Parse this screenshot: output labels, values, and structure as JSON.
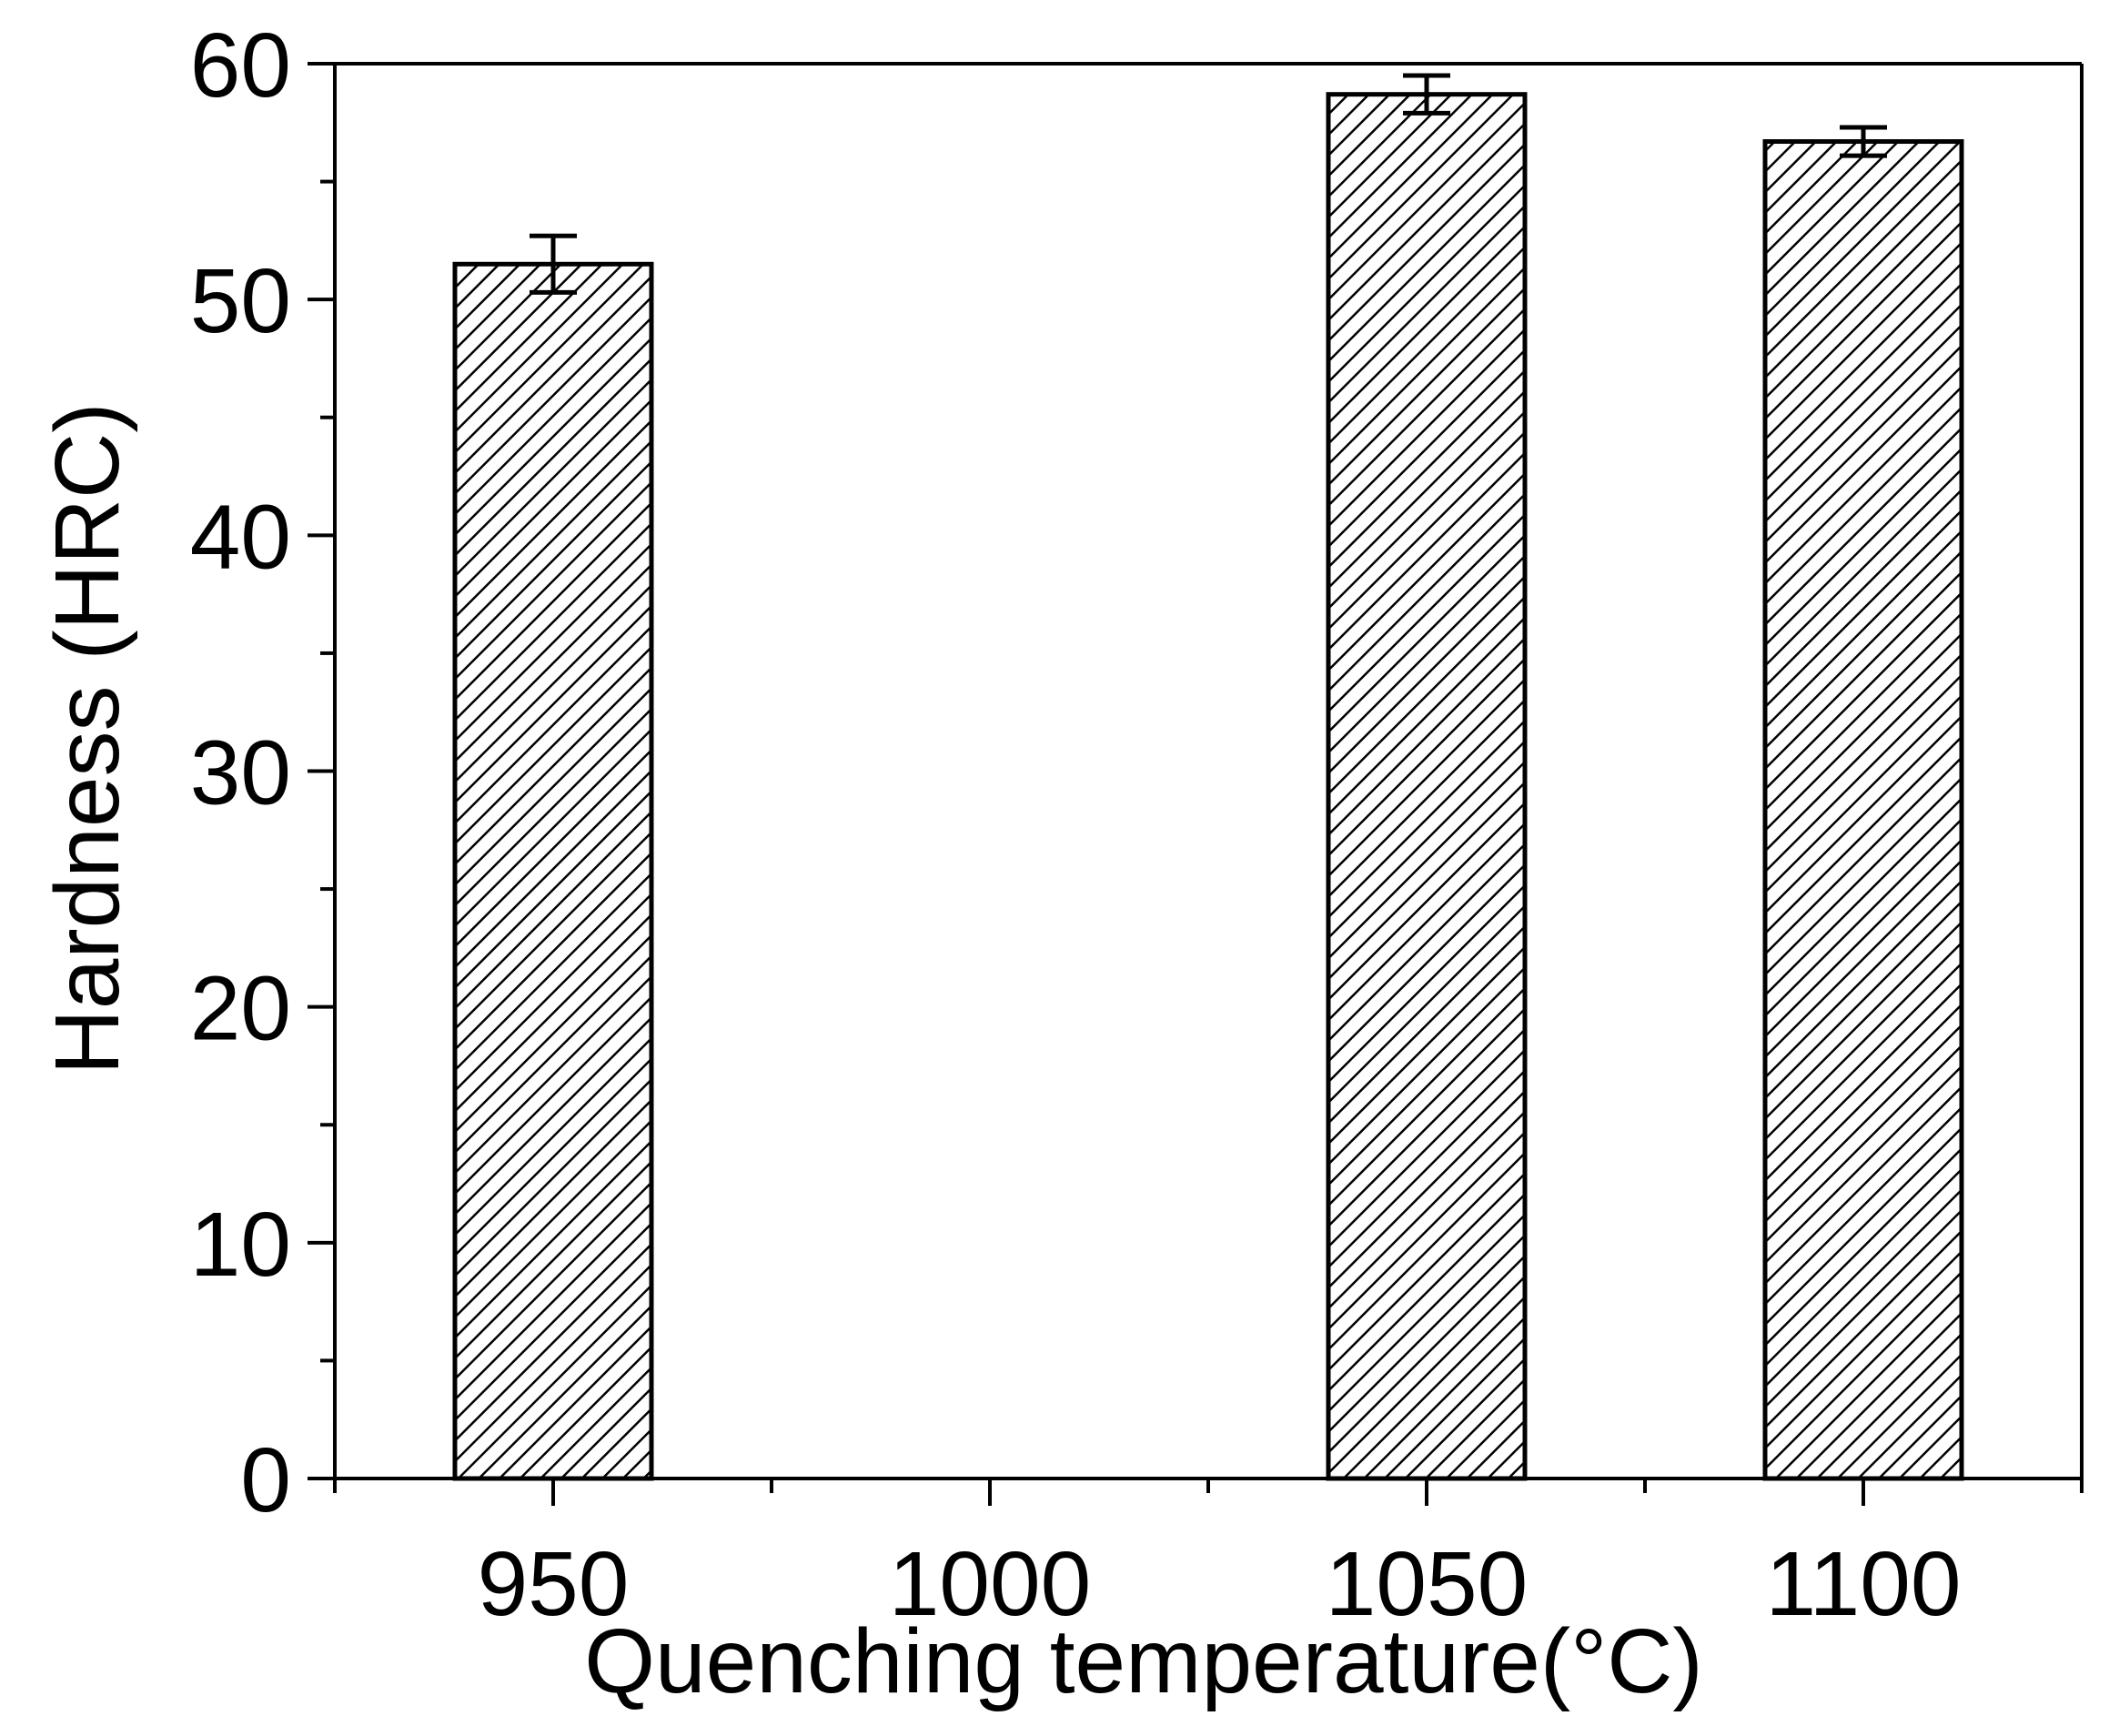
{
  "chart_data": {
    "type": "bar",
    "title": "",
    "xlabel": "Quenching temperature(°C)",
    "ylabel": "Hardness (HRC)",
    "x_ticks": [
      "950",
      "1000",
      "1050",
      "1100"
    ],
    "x_range": [
      925,
      1125
    ],
    "ylim": [
      0,
      60
    ],
    "y_ticks": [
      "0",
      "10",
      "20",
      "30",
      "40",
      "50",
      "60"
    ],
    "bars": [
      {
        "x": 950,
        "value": 51.5,
        "error": 1.2
      },
      {
        "x": 1050,
        "value": 58.7,
        "error": 0.8
      },
      {
        "x": 1100,
        "value": 56.7,
        "error": 0.6
      }
    ],
    "pattern": "diagonal-hatch",
    "bar_color": "#ffffff",
    "line_color": "#000000",
    "grid": false,
    "legend": "none"
  }
}
